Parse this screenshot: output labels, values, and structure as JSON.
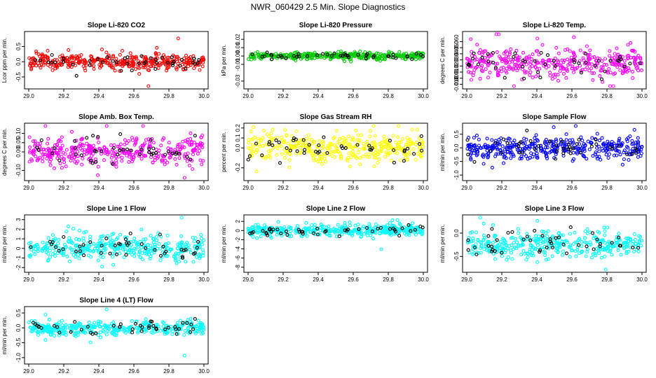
{
  "title": "NWR_060429  2.5 Min. Slope Diagnostics",
  "colors": {
    "red": "#ff0000",
    "green": "#00cc00",
    "magenta": "#ff00ff",
    "yellow": "#ffff00",
    "blue": "#0000ff",
    "cyan": "#00ffff",
    "highlight": "#000000"
  },
  "chart_data": [
    {
      "type": "scatter",
      "title": "Slope Li-820 CO2",
      "ylabel": "Lcor ppm per min.",
      "xlim": [
        29.0,
        30.0
      ],
      "xticks": [
        "29.0",
        "29.2",
        "29.4",
        "29.6",
        "29.8",
        "30.0"
      ],
      "ylim": [
        -0.8,
        0.9
      ],
      "yticks": [
        "-0.5",
        "0.0",
        "0.5"
      ],
      "color": "red",
      "series": [
        {
          "name": "slope",
          "center": 0.0,
          "spread": 0.12,
          "count": 380
        },
        {
          "name": "flagged",
          "center": 0.0,
          "spread": 0.1,
          "count": 45
        }
      ]
    },
    {
      "type": "scatter",
      "title": "Slope Li-820 Pressure",
      "ylabel": "kPa per min.",
      "xlim": [
        29.0,
        30.0
      ],
      "xticks": [
        "29.0",
        "29.2",
        "29.4",
        "29.6",
        "29.8",
        "30.0"
      ],
      "ylim": [
        -0.036,
        0.026
      ],
      "yticks": [
        "-0.03",
        "-0.01",
        "0.00",
        "0.01",
        "0.02"
      ],
      "color": "green",
      "series": [
        {
          "name": "slope",
          "center": 0.0,
          "spread": 0.002,
          "count": 380
        },
        {
          "name": "flagged",
          "center": 0.0,
          "spread": 0.002,
          "count": 45
        }
      ]
    },
    {
      "type": "scatter",
      "title": "Slope Li-820 Temp.",
      "ylabel": "degrees C per min.",
      "xlim": [
        29.0,
        30.0
      ],
      "xticks": [
        "29.0",
        "29.2",
        "29.4",
        "29.6",
        "29.8",
        "30.0"
      ],
      "ylim": [
        -0.013,
        0.072
      ],
      "yticks": [
        "-0.010",
        "0.000",
        "0.010",
        "0.020",
        "0.030",
        "0.040",
        "0.050",
        "0.060"
      ],
      "color": "magenta",
      "series": [
        {
          "name": "slope",
          "center": 0.025,
          "spread": 0.012,
          "count": 380
        },
        {
          "name": "flagged",
          "center": 0.025,
          "spread": 0.01,
          "count": 45
        }
      ]
    },
    {
      "type": "scatter",
      "title": "Slope Amb. Box Temp.",
      "ylabel": "degrees C per min.",
      "xlim": [
        29.0,
        30.0
      ],
      "xticks": [
        "29.0",
        "29.2",
        "29.4",
        "29.6",
        "29.8",
        "30.0"
      ],
      "ylim": [
        -0.14,
        0.14
      ],
      "yticks": [
        "-0.10",
        "0.00",
        "0.05",
        "0.10"
      ],
      "color": "magenta",
      "series": [
        {
          "name": "slope",
          "center": 0.0,
          "spread": 0.04,
          "count": 380
        },
        {
          "name": "flagged",
          "center": 0.0,
          "spread": 0.035,
          "count": 45
        }
      ]
    },
    {
      "type": "scatter",
      "title": "Slope Gas Stream RH",
      "ylabel": "percent per min.",
      "xlim": [
        29.0,
        30.0
      ],
      "xticks": [
        "29.0",
        "29.2",
        "29.4",
        "29.6",
        "29.8",
        "30.0"
      ],
      "ylim": [
        -0.3,
        0.22
      ],
      "yticks": [
        "-0.2",
        "0.0",
        "0.1",
        "0.2"
      ],
      "color": "yellow",
      "series": [
        {
          "name": "slope",
          "center": 0.0,
          "spread": 0.07,
          "count": 380
        },
        {
          "name": "flagged",
          "center": 0.0,
          "spread": 0.06,
          "count": 45
        }
      ]
    },
    {
      "type": "scatter",
      "title": "Slope Sample Flow",
      "ylabel": "ml/min per min.",
      "xlim": [
        29.0,
        30.0
      ],
      "xticks": [
        "29.0",
        "29.2",
        "29.4",
        "29.6",
        "29.8",
        "30.0"
      ],
      "ylim": [
        -1.1,
        0.8
      ],
      "yticks": [
        "-1.0",
        "-0.5",
        "0.0",
        "0.5"
      ],
      "color": "blue",
      "series": [
        {
          "name": "slope",
          "center": 0.0,
          "spread": 0.2,
          "count": 380
        },
        {
          "name": "flagged",
          "center": 0.0,
          "spread": 0.2,
          "count": 45
        }
      ]
    },
    {
      "type": "scatter",
      "title": "Slope Line 1 Flow",
      "ylabel": "ml/min per min.",
      "xlim": [
        29.0,
        30.0
      ],
      "xticks": [
        "29.0",
        "29.2",
        "29.4",
        "29.6",
        "29.8",
        "30.0"
      ],
      "ylim": [
        -2.2,
        3.2
      ],
      "yticks": [
        "-2",
        "-1",
        "0",
        "1",
        "2",
        "3"
      ],
      "color": "cyan",
      "series": [
        {
          "name": "slope",
          "center": 0.1,
          "spread": 0.65,
          "count": 380
        },
        {
          "name": "flagged",
          "center": 0.1,
          "spread": 0.6,
          "count": 45
        }
      ]
    },
    {
      "type": "scatter",
      "title": "Slope Line 2 Flow",
      "ylabel": "ml/min per min.",
      "xlim": [
        29.0,
        30.0
      ],
      "xticks": [
        "29.0",
        "29.2",
        "29.4",
        "29.6",
        "29.8",
        "30.0"
      ],
      "ylim": [
        -8.5,
        2.8
      ],
      "yticks": [
        "-8",
        "-6",
        "-4",
        "-2",
        "0",
        "2"
      ],
      "color": "cyan",
      "series": [
        {
          "name": "slope",
          "center": 0.0,
          "spread": 0.6,
          "count": 380
        },
        {
          "name": "flagged",
          "center": 0.0,
          "spread": 0.5,
          "count": 45
        }
      ]
    },
    {
      "type": "scatter",
      "title": "Slope Line 3 Flow",
      "ylabel": "ml/min per min.",
      "xlim": [
        29.0,
        30.0
      ],
      "xticks": [
        "29.0",
        "29.2",
        "29.4",
        "29.6",
        "29.8",
        "30.0"
      ],
      "ylim": [
        -0.78,
        0.33
      ],
      "yticks": [
        "-0.5",
        "0.0"
      ],
      "color": "cyan",
      "series": [
        {
          "name": "slope",
          "center": -0.25,
          "spread": 0.15,
          "count": 380
        },
        {
          "name": "flagged",
          "center": -0.25,
          "spread": 0.14,
          "count": 45
        }
      ]
    },
    {
      "type": "scatter",
      "title": "Slope Line 4 (LT) Flow",
      "ylabel": "ml/min per min.",
      "xlim": [
        29.0,
        30.0
      ],
      "xticks": [
        "29.0",
        "29.2",
        "29.4",
        "29.6",
        "29.8",
        "30.0"
      ],
      "ylim": [
        -1.12,
        0.62
      ],
      "yticks": [
        "-1.0",
        "-0.5",
        "0.0",
        "0.5"
      ],
      "color": "cyan",
      "series": [
        {
          "name": "slope",
          "center": 0.0,
          "spread": 0.12,
          "count": 380
        },
        {
          "name": "flagged",
          "center": 0.0,
          "spread": 0.12,
          "count": 45
        }
      ]
    }
  ]
}
